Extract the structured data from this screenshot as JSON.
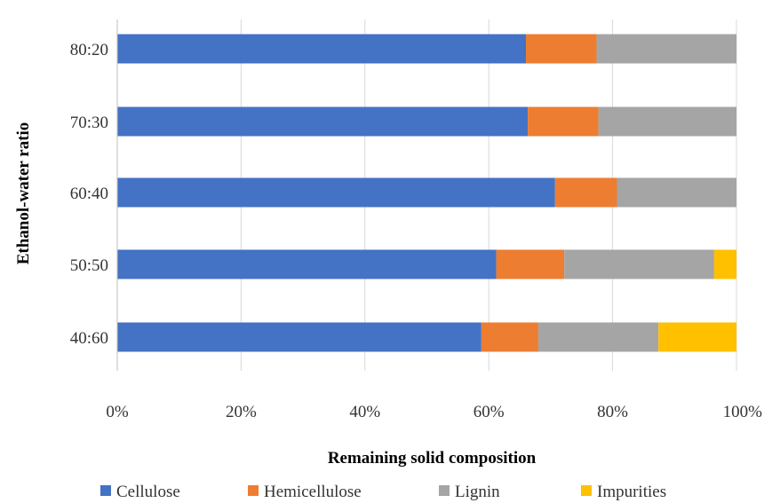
{
  "chart_data": {
    "type": "bar",
    "orientation": "horizontal",
    "stacked": "percent",
    "title": "",
    "xlabel": "Remaining solid composition",
    "ylabel": "Ethanol-water ratio",
    "categories": [
      "80:20",
      "70:30",
      "60:40",
      "50:50",
      "40:60"
    ],
    "xlim": [
      0,
      100
    ],
    "xticks": [
      "0%",
      "20%",
      "40%",
      "60%",
      "80%",
      "100%"
    ],
    "grid": true,
    "legend_position": "bottom",
    "series": [
      {
        "name": "Cellulose",
        "color": "#4472C4",
        "values": [
          66.0,
          66.3,
          70.7,
          61.2,
          58.8
        ]
      },
      {
        "name": "Hemicellulose",
        "color": "#ED7D31",
        "values": [
          11.4,
          11.4,
          10.0,
          11.0,
          9.2
        ]
      },
      {
        "name": "Lignin",
        "color": "#A5A5A5",
        "values": [
          22.6,
          22.3,
          19.3,
          24.2,
          19.4
        ]
      },
      {
        "name": "Impurities",
        "color": "#FFC000",
        "values": [
          0.0,
          0.0,
          0.0,
          3.6,
          12.6
        ]
      }
    ]
  }
}
